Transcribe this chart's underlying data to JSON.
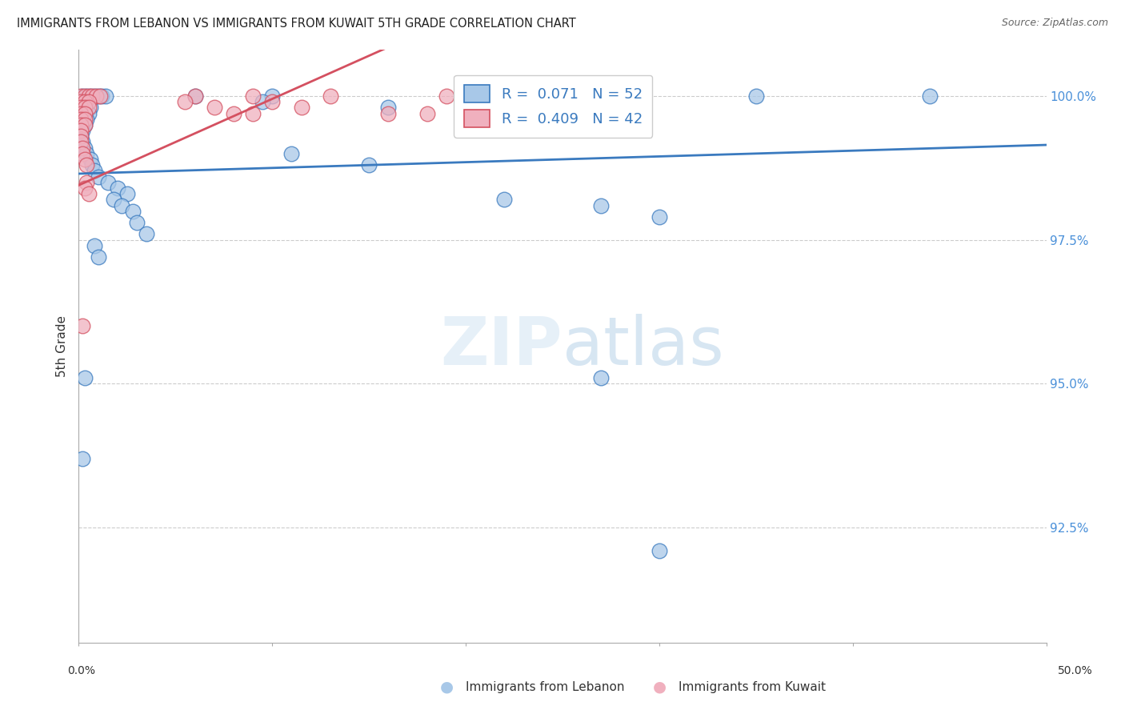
{
  "title": "IMMIGRANTS FROM LEBANON VS IMMIGRANTS FROM KUWAIT 5TH GRADE CORRELATION CHART",
  "source": "Source: ZipAtlas.com",
  "ylabel": "5th Grade",
  "ytick_labels": [
    "100.0%",
    "97.5%",
    "95.0%",
    "92.5%"
  ],
  "ytick_values": [
    1.0,
    0.975,
    0.95,
    0.925
  ],
  "xlim": [
    0.0,
    0.5
  ],
  "ylim": [
    0.905,
    1.008
  ],
  "color_lebanon": "#a8c8e8",
  "color_kuwait": "#f0b0be",
  "trendline_lebanon": "#3a7abf",
  "trendline_kuwait": "#d45060",
  "watermark": "ZIPatlas",
  "scatter_lebanon": [
    [
      0.002,
      1.0
    ],
    [
      0.004,
      1.0
    ],
    [
      0.006,
      1.0
    ],
    [
      0.008,
      1.0
    ],
    [
      0.01,
      1.0
    ],
    [
      0.012,
      1.0
    ],
    [
      0.014,
      1.0
    ],
    [
      0.001,
      0.999
    ],
    [
      0.003,
      0.999
    ],
    [
      0.005,
      0.999
    ],
    [
      0.002,
      0.998
    ],
    [
      0.004,
      0.998
    ],
    [
      0.006,
      0.998
    ],
    [
      0.001,
      0.997
    ],
    [
      0.003,
      0.997
    ],
    [
      0.005,
      0.997
    ],
    [
      0.002,
      0.996
    ],
    [
      0.004,
      0.996
    ],
    [
      0.001,
      0.995
    ],
    [
      0.003,
      0.995
    ],
    [
      0.002,
      0.994
    ],
    [
      0.001,
      0.993
    ],
    [
      0.002,
      0.992
    ],
    [
      0.003,
      0.991
    ],
    [
      0.004,
      0.99
    ],
    [
      0.006,
      0.989
    ],
    [
      0.007,
      0.988
    ],
    [
      0.008,
      0.987
    ],
    [
      0.01,
      0.986
    ],
    [
      0.015,
      0.985
    ],
    [
      0.02,
      0.984
    ],
    [
      0.025,
      0.983
    ],
    [
      0.018,
      0.982
    ],
    [
      0.022,
      0.981
    ],
    [
      0.028,
      0.98
    ],
    [
      0.06,
      1.0
    ],
    [
      0.1,
      1.0
    ],
    [
      0.095,
      0.999
    ],
    [
      0.16,
      0.998
    ],
    [
      0.11,
      0.99
    ],
    [
      0.15,
      0.988
    ],
    [
      0.22,
      0.982
    ],
    [
      0.27,
      0.981
    ],
    [
      0.3,
      0.979
    ],
    [
      0.35,
      1.0
    ],
    [
      0.44,
      1.0
    ],
    [
      0.03,
      0.978
    ],
    [
      0.035,
      0.976
    ],
    [
      0.008,
      0.974
    ],
    [
      0.01,
      0.972
    ],
    [
      0.003,
      0.951
    ],
    [
      0.002,
      0.937
    ],
    [
      0.27,
      0.951
    ],
    [
      0.3,
      0.921
    ]
  ],
  "scatter_kuwait": [
    [
      0.001,
      1.0
    ],
    [
      0.003,
      1.0
    ],
    [
      0.005,
      1.0
    ],
    [
      0.007,
      1.0
    ],
    [
      0.009,
      1.0
    ],
    [
      0.011,
      1.0
    ],
    [
      0.001,
      0.999
    ],
    [
      0.003,
      0.999
    ],
    [
      0.005,
      0.999
    ],
    [
      0.001,
      0.998
    ],
    [
      0.003,
      0.998
    ],
    [
      0.005,
      0.998
    ],
    [
      0.001,
      0.997
    ],
    [
      0.003,
      0.997
    ],
    [
      0.001,
      0.996
    ],
    [
      0.003,
      0.996
    ],
    [
      0.001,
      0.995
    ],
    [
      0.003,
      0.995
    ],
    [
      0.001,
      0.994
    ],
    [
      0.001,
      0.993
    ],
    [
      0.001,
      0.992
    ],
    [
      0.002,
      0.991
    ],
    [
      0.002,
      0.99
    ],
    [
      0.003,
      0.989
    ],
    [
      0.004,
      0.988
    ],
    [
      0.06,
      1.0
    ],
    [
      0.09,
      1.0
    ],
    [
      0.13,
      1.0
    ],
    [
      0.1,
      0.999
    ],
    [
      0.115,
      0.998
    ],
    [
      0.16,
      0.997
    ],
    [
      0.18,
      0.997
    ],
    [
      0.004,
      0.985
    ],
    [
      0.002,
      0.96
    ],
    [
      0.19,
      1.0
    ],
    [
      0.21,
      1.0
    ],
    [
      0.24,
      1.0
    ],
    [
      0.055,
      0.999
    ],
    [
      0.07,
      0.998
    ],
    [
      0.08,
      0.997
    ],
    [
      0.09,
      0.997
    ],
    [
      0.003,
      0.984
    ],
    [
      0.005,
      0.983
    ]
  ]
}
